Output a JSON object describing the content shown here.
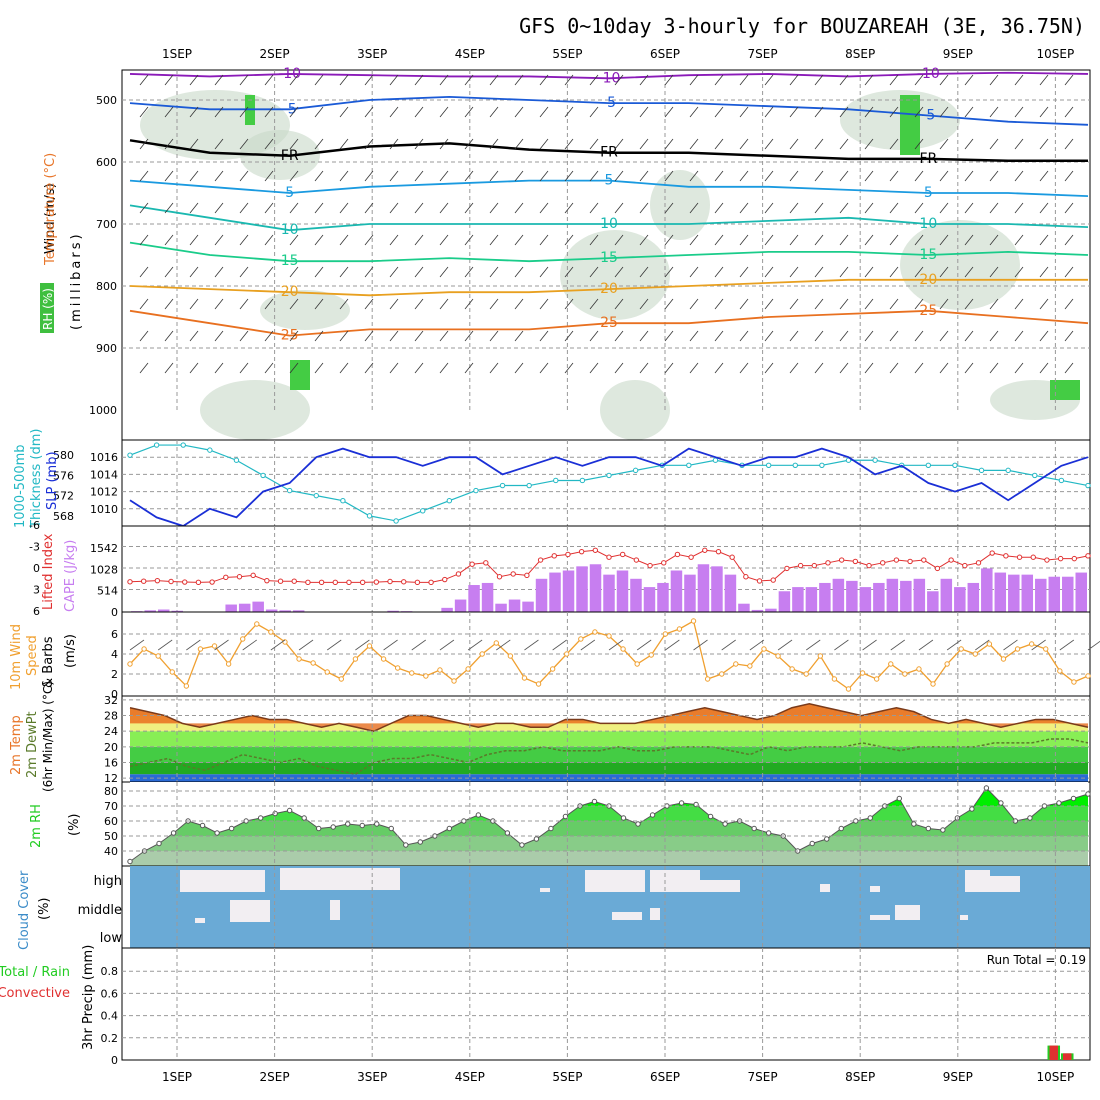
{
  "title": "GFS 0~10day 3-hourly for BOUZAREAH (3E, 36.75N)",
  "dates": [
    "1SEP",
    "2SEP",
    "3SEP",
    "4SEP",
    "5SEP",
    "6SEP",
    "7SEP",
    "8SEP",
    "9SEP",
    "10SEP"
  ],
  "labels": {
    "upper_wind": "Wind (m/s)",
    "upper_temp": "Temperature (°C)",
    "upper_rh": "RH (%)",
    "upper_mb": "(millibars)",
    "thick_a": "Thickness (dm)",
    "thick_b": "1000-500mb",
    "slp": "SLP (mb)",
    "li": "Lifted Index",
    "cape": "CAPE (J/kg)",
    "wind_a": "10m Wind",
    "wind_b": "Speed",
    "wind_c": "& Barbs",
    "wind_d": "(m/s)",
    "temp_a": "2m Temp",
    "temp_b": "2m DewPt",
    "temp_c": "(6hr Min/Max) (°C)",
    "rh_a": "2m RH",
    "rh_b": "(%)",
    "cloud_a": "Cloud Cover",
    "cloud_b": "(%)",
    "cloud_high": "high",
    "cloud_middle": "middle",
    "cloud_low": "low",
    "precip_a": "Total / Rain",
    "precip_b": "Convective",
    "precip_c": "3hr Precip (mm)",
    "run_total": "Run Total = 0.19",
    "fr": "FR"
  },
  "colors": {
    "slp": "#1a2fd6",
    "thick": "#22b8c4",
    "li": "#e03030",
    "cape": "#c77ef0",
    "wind": "#f0a030",
    "temp": "#e8762a",
    "dew": "#5a7a2a",
    "rh": "#22cc22",
    "cloud_bg": "#6aaad6",
    "cloud": "#f2eef2",
    "rain": "#22cc22",
    "conv": "#e03030"
  },
  "chart_data": [
    {
      "type": "contour",
      "name_key": "upper_air",
      "y_levels_mb": [
        500,
        600,
        700,
        800,
        900,
        1000
      ],
      "isotherms": [
        {
          "label": "-10",
          "mb": [
            458,
            462,
            458,
            460,
            462,
            462,
            465,
            460,
            458,
            462,
            458,
            456,
            458
          ]
        },
        {
          "label": "-5",
          "mb": [
            505,
            515,
            515,
            500,
            495,
            500,
            505,
            505,
            510,
            515,
            525,
            535,
            540
          ]
        },
        {
          "label": "FR",
          "mb": [
            565,
            585,
            590,
            575,
            570,
            580,
            585,
            585,
            590,
            595,
            595,
            598,
            598
          ]
        },
        {
          "label": "5",
          "mb": [
            630,
            640,
            650,
            640,
            635,
            630,
            630,
            640,
            640,
            645,
            650,
            650,
            655
          ]
        },
        {
          "label": "10",
          "mb": [
            670,
            690,
            710,
            700,
            700,
            700,
            700,
            700,
            695,
            690,
            700,
            700,
            705
          ]
        },
        {
          "label": "15",
          "mb": [
            730,
            750,
            760,
            760,
            755,
            760,
            755,
            750,
            745,
            745,
            750,
            745,
            750
          ]
        },
        {
          "label": "20",
          "mb": [
            800,
            805,
            810,
            815,
            810,
            810,
            805,
            800,
            795,
            790,
            790,
            790,
            790
          ]
        },
        {
          "label": "25",
          "mb": [
            840,
            860,
            880,
            870,
            870,
            870,
            860,
            860,
            850,
            845,
            840,
            850,
            860
          ]
        }
      ]
    },
    {
      "type": "line",
      "name_key": "slp_thickness",
      "series": [
        {
          "name": "SLP (mb)",
          "values": [
            1011,
            1009,
            1008,
            1010,
            1009,
            1012,
            1013,
            1016,
            1017,
            1016,
            1016,
            1015,
            1016,
            1016,
            1014,
            1015,
            1016,
            1015,
            1016,
            1016,
            1015,
            1017,
            1016,
            1015,
            1016,
            1016,
            1017,
            1016,
            1014,
            1015,
            1013,
            1012,
            1013,
            1011,
            1013,
            1015,
            1016
          ]
        },
        {
          "name": "Thickness (dm)",
          "values": [
            580,
            582,
            582,
            581,
            579,
            576,
            573,
            572,
            571,
            568,
            567,
            569,
            571,
            573,
            574,
            574,
            575,
            575,
            576,
            577,
            578,
            578,
            579,
            578,
            578,
            578,
            578,
            579,
            579,
            578,
            578,
            578,
            577,
            577,
            576,
            575,
            574
          ]
        }
      ]
    },
    {
      "type": "bar",
      "name_key": "cape_li",
      "cape": [
        20,
        40,
        60,
        30,
        10,
        0,
        10,
        180,
        200,
        250,
        60,
        40,
        40,
        0,
        0,
        0,
        0,
        0,
        10,
        30,
        20,
        0,
        0,
        100,
        300,
        650,
        700,
        200,
        300,
        250,
        800,
        950,
        1000,
        1100,
        1150,
        900,
        1000,
        800,
        600,
        700,
        1000,
        900,
        1150,
        1100,
        900,
        200,
        50,
        80,
        500,
        600,
        600,
        700,
        800,
        750,
        600,
        700,
        800,
        750,
        800,
        500,
        800,
        600,
        700,
        1050,
        950,
        900,
        900,
        800,
        850,
        850,
        950
      ]
    },
    {
      "type": "line",
      "name_key": "wind10m",
      "series": [
        {
          "name": "10m Wind Speed",
          "values": [
            3,
            4.5,
            3.8,
            2.2,
            0.8,
            4.5,
            4.8,
            3,
            5.5,
            7,
            6.2,
            5.2,
            3.5,
            3.1,
            2.2,
            1.5,
            3.5,
            4.8,
            3.5,
            2.6,
            2.1,
            1.8,
            2.4,
            1.3,
            2.5,
            4,
            5.1,
            3.8,
            1.6,
            1,
            2.5,
            4,
            5.5,
            6.2,
            5.8,
            4.5,
            3,
            3.9,
            6,
            6.5,
            7.3,
            1.5,
            2,
            3,
            2.8,
            4.5,
            3.8,
            2.5,
            2,
            3.8,
            1.5,
            0.5,
            2.1,
            1.5,
            3,
            2,
            2.5,
            1,
            3,
            4.5,
            4,
            5,
            3.5,
            4.5,
            5,
            4.5,
            2.3,
            1.2,
            1.8
          ]
        }
      ]
    },
    {
      "type": "area",
      "name_key": "temp2m",
      "series": [
        {
          "name": "2m Temp",
          "values": [
            30,
            29,
            28,
            26,
            25,
            26,
            27,
            28,
            27,
            27,
            26,
            25,
            26,
            25,
            24,
            26,
            28,
            28,
            27,
            26,
            25,
            26,
            26,
            25,
            25,
            27,
            27,
            26,
            26,
            26,
            27,
            28,
            29,
            30,
            29,
            28,
            27,
            28,
            30,
            31,
            30,
            29,
            28,
            29,
            30,
            29,
            27,
            26,
            27,
            26,
            25,
            26,
            27,
            27,
            26,
            25
          ]
        },
        {
          "name": "2m DewPt",
          "values": [
            15,
            16,
            17,
            15,
            14,
            16,
            18,
            17,
            16,
            17,
            15,
            14,
            13,
            16,
            17,
            17,
            18,
            17,
            16,
            18,
            19,
            19,
            20,
            19,
            19,
            19,
            20,
            19,
            19,
            20,
            20,
            20,
            19,
            18,
            20,
            19,
            20,
            20,
            20,
            21,
            20,
            19,
            20,
            20,
            20,
            20,
            21,
            21,
            21,
            22,
            22,
            21
          ]
        }
      ],
      "ylim": [
        12,
        32
      ]
    },
    {
      "type": "area",
      "name_key": "rh2m",
      "series": [
        {
          "name": "2m RH",
          "values": [
            33,
            40,
            45,
            52,
            60,
            57,
            52,
            55,
            60,
            62,
            65,
            67,
            62,
            55,
            56,
            58,
            57,
            58,
            55,
            44,
            46,
            50,
            55,
            60,
            64,
            60,
            52,
            44,
            48,
            55,
            63,
            70,
            73,
            70,
            62,
            58,
            64,
            70,
            72,
            71,
            63,
            58,
            60,
            55,
            52,
            50,
            40,
            45,
            48,
            55,
            60,
            62,
            70,
            75,
            58,
            55,
            54,
            62,
            68,
            82,
            72,
            60,
            62,
            70,
            72,
            75,
            78
          ]
        }
      ],
      "ylim": [
        30,
        85
      ]
    },
    {
      "type": "heatmap",
      "name_key": "cloud",
      "rows": [
        "high",
        "middle",
        "low"
      ]
    },
    {
      "type": "bar",
      "name_key": "precip",
      "series": [
        {
          "name": "Total / Rain",
          "values": [
            0,
            0,
            0,
            0,
            0,
            0,
            0,
            0,
            0,
            0,
            0,
            0,
            0,
            0,
            0,
            0,
            0,
            0,
            0,
            0,
            0,
            0,
            0,
            0,
            0,
            0,
            0,
            0,
            0,
            0,
            0,
            0,
            0,
            0,
            0,
            0,
            0,
            0,
            0,
            0,
            0,
            0,
            0,
            0,
            0,
            0,
            0,
            0,
            0,
            0,
            0,
            0,
            0,
            0,
            0,
            0,
            0,
            0,
            0,
            0,
            0,
            0,
            0,
            0,
            0,
            0,
            0,
            0,
            0.13,
            0.06,
            0
          ]
        }
      ],
      "ylim": [
        0,
        1
      ],
      "ticks": [
        "0",
        "0.2",
        "0.4",
        "0.6",
        "0.8"
      ]
    }
  ]
}
